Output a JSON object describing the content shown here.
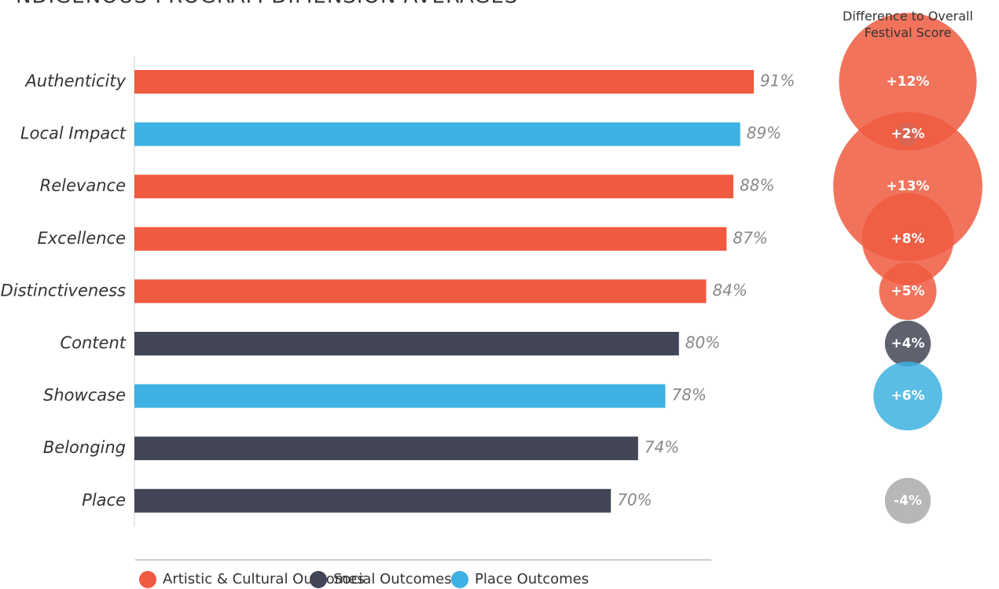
{
  "chart_data": [
    {
      "type": "bar",
      "title": "NDIGENOUS PROGRAM DIMENSION AVERAGES",
      "categories": [
        "Authenticity",
        "Local Impact",
        "Relevance",
        "Excellence",
        "Distinctiveness",
        "Content",
        "Showcase",
        "Belonging",
        "Place"
      ],
      "series": [
        {
          "name": "Artistic & Cultural Outcomes",
          "color": "#f05a40",
          "values": [
            91,
            null,
            88,
            87,
            84,
            null,
            null,
            null,
            null
          ],
          "value_labels": [
            "91%",
            null,
            "88%",
            "87%",
            "84%",
            null,
            null,
            null,
            null
          ]
        },
        {
          "name": "Social Outcomes",
          "color": "#424656",
          "values": [
            null,
            null,
            null,
            null,
            null,
            80,
            null,
            74,
            70
          ],
          "value_labels": [
            null,
            null,
            null,
            null,
            null,
            "80%",
            null,
            "74%",
            "70%"
          ]
        },
        {
          "name": "Place Outcomes",
          "color": "#3db1e2",
          "values": [
            null,
            89,
            null,
            null,
            null,
            null,
            78,
            null,
            null
          ],
          "value_labels": [
            null,
            "89%",
            null,
            null,
            null,
            null,
            "78%",
            null,
            null
          ]
        }
      ],
      "xlim": [
        0,
        100
      ]
    },
    {
      "type": "bubble",
      "title": "Difference to Overall Festival Score",
      "values": [
        12,
        2,
        13,
        8,
        5,
        4,
        6,
        0,
        -4
      ],
      "value_labels": [
        "+12%",
        "+2%",
        "+13%",
        "+8%",
        "+5%",
        "+4%",
        "+6%",
        "=",
        "-4%"
      ],
      "colors": [
        "#f05a40",
        "#3db1e2",
        "#f05a40",
        "#f05a40",
        "#f05a40",
        "#424656",
        "#3db1e2",
        "#aaaaaa",
        "#aaaaaa"
      ]
    }
  ]
}
